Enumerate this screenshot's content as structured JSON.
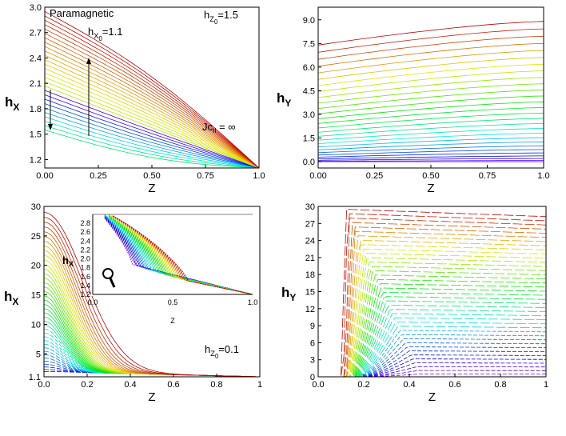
{
  "chart_data": [
    {
      "id": "tl",
      "type": "line",
      "ylabel": "h",
      "ylabel_sub": "X",
      "xlabel": "Z",
      "xlim": [
        0,
        1.0
      ],
      "ylim": [
        1.1,
        3.0
      ],
      "xticks": [
        "0.00",
        "0.25",
        "0.50",
        "0.75",
        "1.0"
      ],
      "xtick_values": [
        0,
        0.25,
        0.5,
        0.75,
        1.0
      ],
      "yticks": [
        "1.2",
        "1.5",
        "1.8",
        "2.1",
        "2.4",
        "2.7",
        "3.0"
      ],
      "ytick_values": [
        1.2,
        1.5,
        1.8,
        2.1,
        2.4,
        2.7,
        3.0
      ],
      "annotations": {
        "paramagnetic": "Paramagnetic",
        "hz0_main": "h",
        "hz0_sub": "Z",
        "hz0_sub2": "0",
        "hz0_val": "=1.5",
        "hx0_main": "h",
        "hx0_sub": "X",
        "hx0_sub2": "0",
        "hx0_val": "=1.1",
        "jc_main": "Jc",
        "jc_sub": "II",
        "jc_val": " = ∞"
      },
      "series": {
        "count": 28,
        "start_values": [
          1.55,
          2.95
        ],
        "end_value": 1.1
      }
    },
    {
      "id": "tr",
      "type": "line",
      "ylabel": "h",
      "ylabel_sub": "Y",
      "xlabel": "Z",
      "xlim": [
        0,
        1.0
      ],
      "ylim": [
        -0.4,
        9.8
      ],
      "xticks": [
        "0.00",
        "0.25",
        "0.50",
        "0.75",
        "1.0"
      ],
      "xtick_values": [
        0,
        0.25,
        0.5,
        0.75,
        1.0
      ],
      "yticks": [
        "0.0",
        "1.5",
        "3.0",
        "4.5",
        "6.0",
        "7.5",
        "9.0"
      ],
      "ytick_values": [
        0,
        1.5,
        3.0,
        4.5,
        6.0,
        7.5,
        9.0
      ],
      "series": {
        "count": 28,
        "z0_values": [
          0,
          7.4
        ],
        "z1_values": [
          0,
          8.9
        ]
      }
    },
    {
      "id": "bl",
      "type": "line",
      "ylabel": "h",
      "ylabel_sub": "X",
      "xlabel": "Z",
      "xlim": [
        0,
        1.0
      ],
      "ylim": [
        1.1,
        30
      ],
      "xticks": [
        "0.0",
        "0.2",
        "0.4",
        "0.6",
        "0.8",
        "1"
      ],
      "xtick_values": [
        0,
        0.2,
        0.4,
        0.6,
        0.8,
        1.0
      ],
      "yticks": [
        "1.1",
        "5",
        "10",
        "15",
        "20",
        "25",
        "30"
      ],
      "ytick_values": [
        1.1,
        5,
        10,
        15,
        20,
        25,
        30
      ],
      "annotations": {
        "hz0_main": "h",
        "hz0_sub": "Z",
        "hz0_sub2": "0",
        "hz0_val": "=0.1"
      },
      "series": {
        "count": 40,
        "start_values": [
          2.0,
          29
        ],
        "end_value": 1.1
      },
      "inset": {
        "ylabel": "h",
        "ylabel_sub": "X",
        "xlabel": "Z",
        "xlim": [
          0,
          1.0
        ],
        "ylim": [
          1.2,
          3.0
        ],
        "xticks": [
          "0.0",
          "0.5",
          "1.0"
        ],
        "xtick_values": [
          0,
          0.5,
          1.0
        ],
        "yticks": [
          "1.2",
          "1.4",
          "1.6",
          "1.8",
          "2.0",
          "2.2",
          "2.4",
          "2.6",
          "2.8"
        ],
        "ytick_values": [
          1.2,
          1.4,
          1.6,
          1.8,
          2.0,
          2.2,
          2.4,
          2.6,
          2.8
        ]
      }
    },
    {
      "id": "br",
      "type": "line",
      "ylabel": "h",
      "ylabel_sub": "Y",
      "xlabel": "Z",
      "xlim": [
        0,
        1.0
      ],
      "ylim": [
        0,
        30
      ],
      "xticks": [
        "0.0",
        "0.2",
        "0.4",
        "0.6",
        "0.8",
        "1"
      ],
      "xtick_values": [
        0,
        0.2,
        0.4,
        0.6,
        0.8,
        1.0
      ],
      "yticks": [
        "0",
        "3",
        "6",
        "9",
        "12",
        "15",
        "18",
        "21",
        "24",
        "27",
        "30"
      ],
      "ytick_values": [
        0,
        3,
        6,
        9,
        12,
        15,
        18,
        21,
        24,
        27,
        30
      ],
      "series": {
        "count": 40,
        "plateau_values": [
          0.5,
          29.5
        ]
      }
    }
  ],
  "icons": {
    "inset_magnifier": "magnifier-icon"
  }
}
